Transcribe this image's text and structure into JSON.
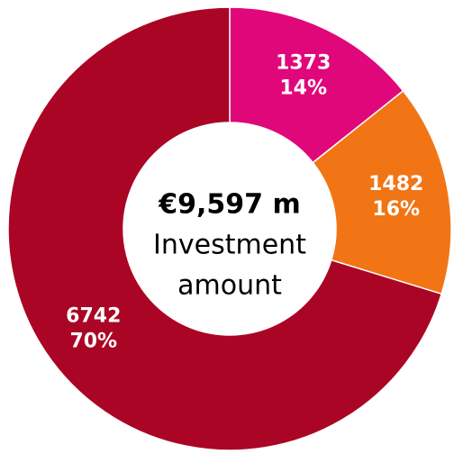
{
  "chart_data": {
    "type": "pie",
    "donut": true,
    "values": [
      1373,
      1482,
      6742
    ],
    "percent_labels": [
      "14%",
      "16%",
      "70%"
    ],
    "colors": [
      "#e0077b",
      "#f17515",
      "#ab0525"
    ],
    "center_label": "€9,597 m",
    "center_text": [
      "Investment",
      "amount"
    ]
  }
}
